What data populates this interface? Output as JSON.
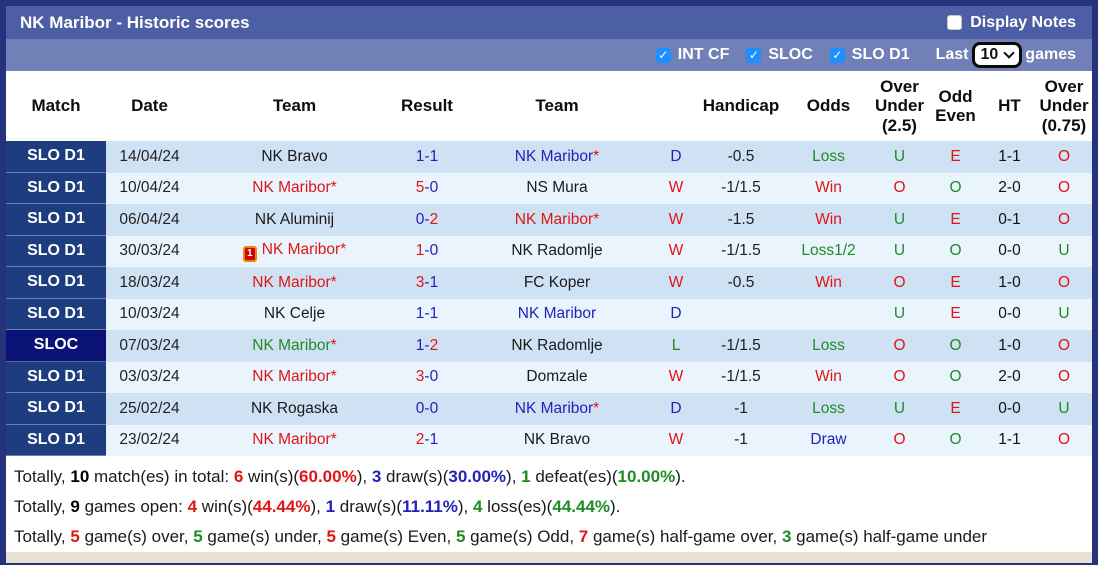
{
  "colors": {
    "red": "#e01515",
    "green": "#1f8b24",
    "blue": "#2222bb",
    "black": "#1a1a1a",
    "frame": "#27327c",
    "title_bar_bg": "#4d5fa4",
    "filter_bar_bg": "#7181b8",
    "match_bg": "#1e3d80",
    "match_bg_dark": "#0c1377",
    "row_dark": "#cfe2f3",
    "row_light": "#eaf4fc",
    "checkbox_blue": "#1e8fff",
    "strip": "#e8e1d2"
  },
  "title_bar": {
    "title": "NK Maribor - Historic scores",
    "display_notes": {
      "label": "Display Notes",
      "checked": false
    }
  },
  "filter_bar": {
    "leagues": [
      {
        "label": "INT CF",
        "checked": true
      },
      {
        "label": "SLOC",
        "checked": true
      },
      {
        "label": "SLO D1",
        "checked": true
      }
    ],
    "last_label": "Last",
    "selected_value": "10",
    "games_label": "games"
  },
  "table": {
    "headers": {
      "match": "Match",
      "date": "Date",
      "team_home": "Team",
      "result": "Result",
      "team_away": "Team",
      "wdl": "",
      "handicap": "Handicap",
      "odds": "Odds",
      "over_under_25": "Over Under (2.5)",
      "odd_even": "Odd Even",
      "ht": "HT",
      "over_under_075": "Over Under (0.75)"
    },
    "rows": [
      {
        "match": "SLO D1",
        "match_dark": false,
        "date": "14/04/24",
        "home": {
          "name": "NK Bravo",
          "c": "black",
          "star": false
        },
        "score": {
          "h": "1",
          "hc": "blue",
          "a": "1",
          "ac": "blue"
        },
        "away": {
          "name": "NK Maribor",
          "c": "blue",
          "star": true
        },
        "wdl": {
          "t": "D",
          "c": "blue"
        },
        "handicap": "-0.5",
        "odds": {
          "t": "Loss",
          "c": "green"
        },
        "ou25": {
          "t": "U",
          "c": "green"
        },
        "oddeven": {
          "t": "E",
          "c": "red"
        },
        "ht": "1-1",
        "ou075": {
          "t": "O",
          "c": "red"
        }
      },
      {
        "match": "SLO D1",
        "match_dark": false,
        "date": "10/04/24",
        "home": {
          "name": "NK Maribor",
          "c": "red",
          "star": true
        },
        "score": {
          "h": "5",
          "hc": "red",
          "a": "0",
          "ac": "blue"
        },
        "away": {
          "name": "NS Mura",
          "c": "black",
          "star": false
        },
        "wdl": {
          "t": "W",
          "c": "red"
        },
        "handicap": "-1/1.5",
        "odds": {
          "t": "Win",
          "c": "red"
        },
        "ou25": {
          "t": "O",
          "c": "red"
        },
        "oddeven": {
          "t": "O",
          "c": "green"
        },
        "ht": "2-0",
        "ou075": {
          "t": "O",
          "c": "red"
        }
      },
      {
        "match": "SLO D1",
        "match_dark": false,
        "date": "06/04/24",
        "home": {
          "name": "NK Aluminij",
          "c": "black",
          "star": false
        },
        "score": {
          "h": "0",
          "hc": "blue",
          "a": "2",
          "ac": "red"
        },
        "away": {
          "name": "NK Maribor",
          "c": "red",
          "star": true
        },
        "wdl": {
          "t": "W",
          "c": "red"
        },
        "handicap": "-1.5",
        "odds": {
          "t": "Win",
          "c": "red"
        },
        "ou25": {
          "t": "U",
          "c": "green"
        },
        "oddeven": {
          "t": "E",
          "c": "red"
        },
        "ht": "0-1",
        "ou075": {
          "t": "O",
          "c": "red"
        }
      },
      {
        "match": "SLO D1",
        "match_dark": false,
        "date": "30/03/24",
        "home": {
          "name": "NK Maribor",
          "c": "red",
          "star": true,
          "rc": "1"
        },
        "score": {
          "h": "1",
          "hc": "red",
          "a": "0",
          "ac": "blue"
        },
        "away": {
          "name": "NK Radomlje",
          "c": "black",
          "star": false
        },
        "wdl": {
          "t": "W",
          "c": "red"
        },
        "handicap": "-1/1.5",
        "odds": {
          "t": "Loss1/2",
          "c": "green"
        },
        "ou25": {
          "t": "U",
          "c": "green"
        },
        "oddeven": {
          "t": "O",
          "c": "green"
        },
        "ht": "0-0",
        "ou075": {
          "t": "U",
          "c": "green"
        }
      },
      {
        "match": "SLO D1",
        "match_dark": false,
        "date": "18/03/24",
        "home": {
          "name": "NK Maribor",
          "c": "red",
          "star": true
        },
        "score": {
          "h": "3",
          "hc": "red",
          "a": "1",
          "ac": "blue"
        },
        "away": {
          "name": "FC Koper",
          "c": "black",
          "star": false
        },
        "wdl": {
          "t": "W",
          "c": "red"
        },
        "handicap": "-0.5",
        "odds": {
          "t": "Win",
          "c": "red"
        },
        "ou25": {
          "t": "O",
          "c": "red"
        },
        "oddeven": {
          "t": "E",
          "c": "red"
        },
        "ht": "1-0",
        "ou075": {
          "t": "O",
          "c": "red"
        }
      },
      {
        "match": "SLO D1",
        "match_dark": false,
        "date": "10/03/24",
        "home": {
          "name": "NK Celje",
          "c": "black",
          "star": false
        },
        "score": {
          "h": "1",
          "hc": "blue",
          "a": "1",
          "ac": "blue"
        },
        "away": {
          "name": "NK Maribor",
          "c": "blue",
          "star": false
        },
        "wdl": {
          "t": "D",
          "c": "blue"
        },
        "handicap": "",
        "odds": {
          "t": "",
          "c": "black"
        },
        "ou25": {
          "t": "U",
          "c": "green"
        },
        "oddeven": {
          "t": "E",
          "c": "red"
        },
        "ht": "0-0",
        "ou075": {
          "t": "U",
          "c": "green"
        }
      },
      {
        "match": "SLOC",
        "match_dark": true,
        "date": "07/03/24",
        "home": {
          "name": "NK Maribor",
          "c": "green",
          "star": true
        },
        "score": {
          "h": "1",
          "hc": "blue",
          "a": "2",
          "ac": "red"
        },
        "away": {
          "name": "NK Radomlje",
          "c": "black",
          "star": false
        },
        "wdl": {
          "t": "L",
          "c": "green"
        },
        "handicap": "-1/1.5",
        "odds": {
          "t": "Loss",
          "c": "green"
        },
        "ou25": {
          "t": "O",
          "c": "red"
        },
        "oddeven": {
          "t": "O",
          "c": "green"
        },
        "ht": "1-0",
        "ou075": {
          "t": "O",
          "c": "red"
        }
      },
      {
        "match": "SLO D1",
        "match_dark": false,
        "date": "03/03/24",
        "home": {
          "name": "NK Maribor",
          "c": "red",
          "star": true
        },
        "score": {
          "h": "3",
          "hc": "red",
          "a": "0",
          "ac": "blue"
        },
        "away": {
          "name": "Domzale",
          "c": "black",
          "star": false
        },
        "wdl": {
          "t": "W",
          "c": "red"
        },
        "handicap": "-1/1.5",
        "odds": {
          "t": "Win",
          "c": "red"
        },
        "ou25": {
          "t": "O",
          "c": "red"
        },
        "oddeven": {
          "t": "O",
          "c": "green"
        },
        "ht": "2-0",
        "ou075": {
          "t": "O",
          "c": "red"
        }
      },
      {
        "match": "SLO D1",
        "match_dark": false,
        "date": "25/02/24",
        "home": {
          "name": "NK Rogaska",
          "c": "black",
          "star": false
        },
        "score": {
          "h": "0",
          "hc": "blue",
          "a": "0",
          "ac": "blue"
        },
        "away": {
          "name": "NK Maribor",
          "c": "blue",
          "star": true
        },
        "wdl": {
          "t": "D",
          "c": "blue"
        },
        "handicap": "-1",
        "odds": {
          "t": "Loss",
          "c": "green"
        },
        "ou25": {
          "t": "U",
          "c": "green"
        },
        "oddeven": {
          "t": "E",
          "c": "red"
        },
        "ht": "0-0",
        "ou075": {
          "t": "U",
          "c": "green"
        }
      },
      {
        "match": "SLO D1",
        "match_dark": false,
        "date": "23/02/24",
        "home": {
          "name": "NK Maribor",
          "c": "red",
          "star": true
        },
        "score": {
          "h": "2",
          "hc": "red",
          "a": "1",
          "ac": "blue"
        },
        "away": {
          "name": "NK Bravo",
          "c": "black",
          "star": false
        },
        "wdl": {
          "t": "W",
          "c": "red"
        },
        "handicap": "-1",
        "odds": {
          "t": "Draw",
          "c": "blue"
        },
        "ou25": {
          "t": "O",
          "c": "red"
        },
        "oddeven": {
          "t": "O",
          "c": "green"
        },
        "ht": "1-1",
        "ou075": {
          "t": "O",
          "c": "red"
        }
      }
    ]
  },
  "summary": {
    "lines": [
      [
        {
          "t": "Totally, "
        },
        {
          "t": "10",
          "b": 1
        },
        {
          "t": " match(es) in total: "
        },
        {
          "t": "6",
          "c": "red",
          "b": 1
        },
        {
          "t": " win(s)("
        },
        {
          "t": "60.00%",
          "c": "red",
          "b": 1
        },
        {
          "t": "), "
        },
        {
          "t": "3",
          "c": "blue",
          "b": 1
        },
        {
          "t": " draw(s)("
        },
        {
          "t": "30.00%",
          "c": "blue",
          "b": 1
        },
        {
          "t": "), "
        },
        {
          "t": "1",
          "c": "green",
          "b": 1
        },
        {
          "t": " defeat(es)("
        },
        {
          "t": "10.00%",
          "c": "green",
          "b": 1
        },
        {
          "t": ")."
        }
      ],
      [
        {
          "t": "Totally, "
        },
        {
          "t": "9",
          "b": 1
        },
        {
          "t": " games open: "
        },
        {
          "t": "4",
          "c": "red",
          "b": 1
        },
        {
          "t": " win(s)("
        },
        {
          "t": "44.44%",
          "c": "red",
          "b": 1
        },
        {
          "t": "), "
        },
        {
          "t": "1",
          "c": "blue",
          "b": 1
        },
        {
          "t": " draw(s)("
        },
        {
          "t": "11.11%",
          "c": "blue",
          "b": 1
        },
        {
          "t": "), "
        },
        {
          "t": "4",
          "c": "green",
          "b": 1
        },
        {
          "t": " loss(es)("
        },
        {
          "t": "44.44%",
          "c": "green",
          "b": 1
        },
        {
          "t": ")."
        }
      ],
      [
        {
          "t": "Totally, "
        },
        {
          "t": "5",
          "c": "red",
          "b": 1
        },
        {
          "t": " game(s) over, "
        },
        {
          "t": "5",
          "c": "green",
          "b": 1
        },
        {
          "t": " game(s) under, "
        },
        {
          "t": "5",
          "c": "red",
          "b": 1
        },
        {
          "t": " game(s) Even, "
        },
        {
          "t": "5",
          "c": "green",
          "b": 1
        },
        {
          "t": " game(s) Odd, "
        },
        {
          "t": "7",
          "c": "red",
          "b": 1
        },
        {
          "t": " game(s) half-game over, "
        },
        {
          "t": "3",
          "c": "green",
          "b": 1
        },
        {
          "t": " game(s) half-game under"
        }
      ]
    ]
  }
}
